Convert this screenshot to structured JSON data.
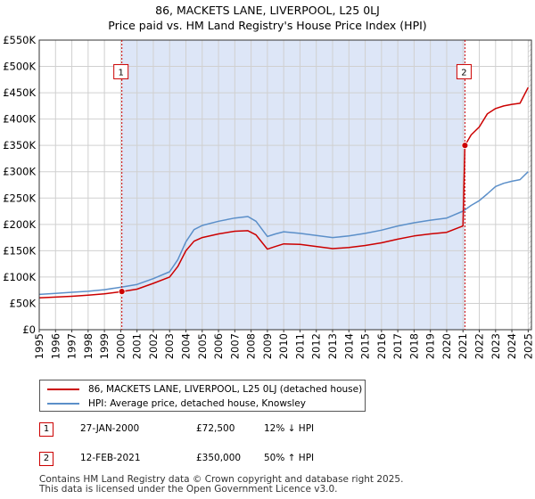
{
  "title": {
    "line1": "86, MACKETS LANE, LIVERPOOL, L25 0LJ",
    "line2": "Price paid vs. HM Land Registry's House Price Index (HPI)"
  },
  "chart_data": {
    "type": "line",
    "title": "86, MACKETS LANE, LIVERPOOL, L25 0LJ",
    "subtitle": "Price paid vs. HM Land Registry's House Price Index (HPI)",
    "xlabel": "",
    "ylabel": "",
    "xlim": [
      1995,
      2025.2
    ],
    "ylim": [
      0,
      550000
    ],
    "grid": true,
    "yticks": [
      {
        "value": 0,
        "label": "£0"
      },
      {
        "value": 50000,
        "label": "£50K"
      },
      {
        "value": 100000,
        "label": "£100K"
      },
      {
        "value": 150000,
        "label": "£150K"
      },
      {
        "value": 200000,
        "label": "£200K"
      },
      {
        "value": 250000,
        "label": "£250K"
      },
      {
        "value": 300000,
        "label": "£300K"
      },
      {
        "value": 350000,
        "label": "£350K"
      },
      {
        "value": 400000,
        "label": "£400K"
      },
      {
        "value": 450000,
        "label": "£450K"
      },
      {
        "value": 500000,
        "label": "£500K"
      },
      {
        "value": 550000,
        "label": "£550K"
      }
    ],
    "xticks": [
      "1995",
      "1996",
      "1997",
      "1998",
      "1999",
      "2000",
      "2001",
      "2002",
      "2003",
      "2004",
      "2005",
      "2006",
      "2007",
      "2008",
      "2009",
      "2010",
      "2011",
      "2012",
      "2013",
      "2014",
      "2015",
      "2016",
      "2017",
      "2018",
      "2019",
      "2020",
      "2021",
      "2022",
      "2023",
      "2024",
      "2025"
    ],
    "shaded_periods": [
      {
        "from": 2000.07,
        "to": 2021.12,
        "color": "#dde6f7"
      }
    ],
    "hatched_after": 2025.0,
    "series": [
      {
        "name": "86, MACKETS LANE, LIVERPOOL, L25 0LJ (detached house)",
        "color": "#cc0000",
        "x": [
          1995.0,
          1996.0,
          1997.0,
          1998.0,
          1999.0,
          2000.07,
          2001.0,
          2002.0,
          2003.0,
          2003.5,
          2004.0,
          2004.5,
          2005.0,
          2006.0,
          2007.0,
          2007.8,
          2008.3,
          2009.0,
          2009.5,
          2010.0,
          2011.0,
          2012.0,
          2013.0,
          2014.0,
          2015.0,
          2016.0,
          2017.0,
          2018.0,
          2019.0,
          2020.0,
          2021.0,
          2021.12,
          2021.5,
          2022.0,
          2022.5,
          2023.0,
          2023.5,
          2024.0,
          2024.5,
          2025.0
        ],
        "y": [
          60500,
          62000,
          63500,
          65500,
          68000,
          72500,
          77000,
          88000,
          100000,
          120000,
          150000,
          168000,
          175000,
          182000,
          187000,
          188000,
          180000,
          153000,
          158000,
          163000,
          162000,
          158000,
          154000,
          156000,
          160000,
          165000,
          172000,
          178000,
          182000,
          185000,
          197000,
          350000,
          370000,
          385000,
          410000,
          420000,
          425000,
          428000,
          430000,
          460000
        ]
      },
      {
        "name": "HPI: Average price, detached house, Knowsley",
        "color": "#5b8fc9",
        "x": [
          1995.0,
          1996.0,
          1997.0,
          1998.0,
          1999.0,
          2000.07,
          2001.0,
          2002.0,
          2003.0,
          2003.5,
          2004.0,
          2004.5,
          2005.0,
          2006.0,
          2007.0,
          2007.8,
          2008.3,
          2009.0,
          2009.5,
          2010.0,
          2011.0,
          2012.0,
          2013.0,
          2014.0,
          2015.0,
          2016.0,
          2017.0,
          2018.0,
          2019.0,
          2020.0,
          2021.0,
          2021.5,
          2022.0,
          2022.5,
          2023.0,
          2023.5,
          2024.0,
          2024.5,
          2025.0
        ],
        "y": [
          67000,
          69000,
          71000,
          73000,
          76000,
          81000,
          86000,
          97000,
          110000,
          133000,
          167000,
          190000,
          198000,
          206000,
          212000,
          215000,
          206000,
          177000,
          182000,
          186000,
          183000,
          179000,
          175000,
          178000,
          183000,
          189000,
          197000,
          203000,
          208000,
          212000,
          225000,
          236000,
          245000,
          258000,
          272000,
          278000,
          282000,
          285000,
          300000
        ]
      }
    ],
    "markers": [
      {
        "label": "1",
        "x": 2000.07,
        "y": 72500
      },
      {
        "label": "2",
        "x": 2021.12,
        "y": 350000
      }
    ],
    "marker_box_y": 490000
  },
  "legend": [
    {
      "label": "86, MACKETS LANE, LIVERPOOL, L25 0LJ (detached house)",
      "color": "#cc0000"
    },
    {
      "label": "HPI: Average price, detached house, Knowsley",
      "color": "#5b8fc9"
    }
  ],
  "sales": [
    {
      "num": "1",
      "date": "27-JAN-2000",
      "price": "£72,500",
      "hpi": "12% ↓ HPI"
    },
    {
      "num": "2",
      "date": "12-FEB-2021",
      "price": "£350,000",
      "hpi": "50% ↑ HPI"
    }
  ],
  "footer": {
    "line1": "Contains HM Land Registry data © Crown copyright and database right 2025.",
    "line2": "This data is licensed under the Open Government Licence v3.0."
  }
}
